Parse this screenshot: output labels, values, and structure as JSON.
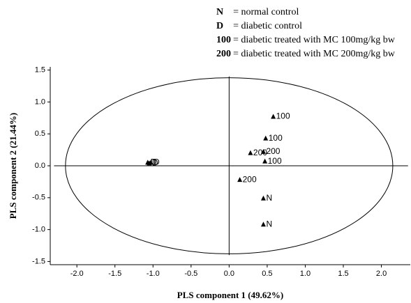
{
  "chart_data": {
    "type": "scatter",
    "x_label": "PLS component 1 (49.62%)",
    "y_label": "PLS component 2 (21.44%)",
    "legend_notes": [
      {
        "key": "N",
        "text": "= normal control"
      },
      {
        "key": "D",
        "text": "= diabetic control"
      },
      {
        "key": "100",
        "text": "= diabetic treated with MC 100mg/kg bw"
      },
      {
        "key": "200",
        "text": "= diabetic treated with MC 200mg/kg bw"
      }
    ],
    "x": [
      -1.07,
      -1.05,
      -1.03,
      0.58,
      0.48,
      0.28,
      0.45,
      0.47,
      0.14,
      0.45,
      0.45
    ],
    "values": [
      0.05,
      0.04,
      0.05,
      0.77,
      0.43,
      0.2,
      0.22,
      0.07,
      -0.22,
      -0.51,
      -0.92
    ],
    "point_labels": [
      "D",
      "D",
      "D",
      "100",
      "100",
      "200",
      "200",
      "100",
      "200",
      "N",
      "N"
    ],
    "color": "#000000",
    "ellipse_radii": [
      2.15,
      1.38
    ],
    "xlim": [
      -2.35,
      2.38
    ],
    "ylim": [
      -1.55,
      1.55
    ],
    "xticks": [
      {
        "value": -2,
        "label": "-2.0"
      },
      -1.5,
      {
        "value": -1,
        "label": "-1.0"
      },
      -0.5,
      {
        "value": 0,
        "label": "0.0"
      },
      0.5,
      {
        "value": 1,
        "label": "1.0"
      },
      1.5,
      {
        "value": 2,
        "label": "2.0"
      }
    ],
    "yticks": [
      1.5,
      {
        "value": 1,
        "label": "1.0"
      },
      0.5,
      {
        "value": 0,
        "label": "0.0"
      },
      -0.5,
      {
        "value": -1,
        "label": "-1.0"
      },
      -1.5
    ]
  }
}
